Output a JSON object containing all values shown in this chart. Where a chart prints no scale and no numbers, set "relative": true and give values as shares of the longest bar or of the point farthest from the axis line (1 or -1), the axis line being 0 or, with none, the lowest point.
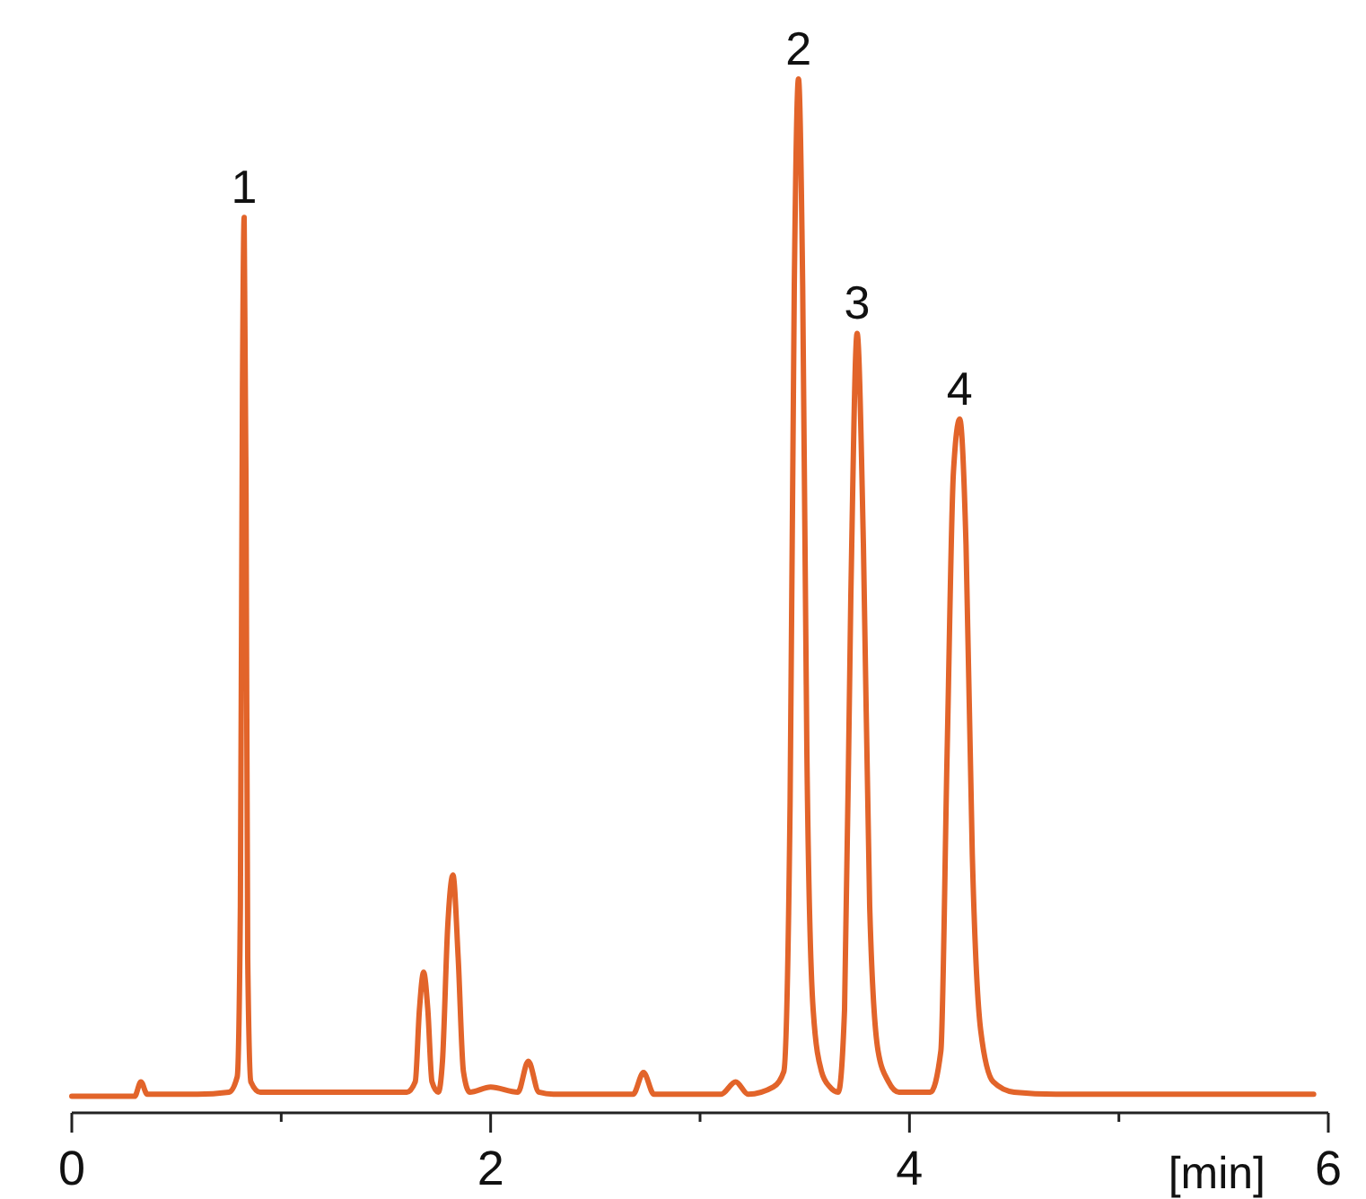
{
  "chart_data": {
    "type": "line",
    "relative": true,
    "xlabel": "[min]",
    "xlim": [
      0,
      6
    ],
    "xticks": [
      0,
      {
        "value": 1,
        "label": null
      },
      2,
      {
        "value": 3,
        "label": null
      },
      4,
      {
        "value": 5,
        "label": null
      },
      6
    ],
    "tick_labels": "x",
    "grid": false,
    "marker": "none",
    "line_style": "solid",
    "annotations": [
      {
        "text": "1",
        "x": 0.823,
        "y": 0.866
      },
      {
        "text": "2",
        "x": 3.47,
        "y": 1
      },
      {
        "text": "3",
        "x": 3.75,
        "y": 0.754
      },
      {
        "text": "4",
        "x": 4.24,
        "y": 0.671
      }
    ],
    "series": [
      {
        "color": "#e2642a",
        "x": [
          0,
          0.3,
          0.33,
          0.36,
          0.6,
          0.75,
          0.79,
          0.805,
          0.815,
          0.823,
          0.832,
          0.84,
          0.855,
          0.9,
          1.3,
          1.6,
          1.64,
          1.66,
          1.68,
          1.7,
          1.72,
          1.75,
          1.77,
          1.795,
          1.82,
          1.845,
          1.87,
          1.9,
          2.0,
          2.13,
          2.18,
          2.23,
          2.3,
          2.68,
          2.73,
          2.78,
          3.1,
          3.17,
          3.23,
          3.35,
          3.4,
          3.43,
          3.45,
          3.47,
          3.49,
          3.51,
          3.54,
          3.58,
          3.62,
          3.66,
          3.69,
          3.72,
          3.75,
          3.78,
          3.81,
          3.85,
          3.9,
          3.95,
          4.1,
          4.15,
          4.18,
          4.21,
          4.24,
          4.27,
          4.3,
          4.34,
          4.4,
          4.5,
          4.7,
          5.93
        ],
        "values": [
          0.016,
          0.016,
          0.03,
          0.018,
          0.018,
          0.02,
          0.035,
          0.2,
          0.7,
          0.866,
          0.6,
          0.15,
          0.03,
          0.02,
          0.02,
          0.02,
          0.03,
          0.1,
          0.136,
          0.1,
          0.03,
          0.02,
          0.05,
          0.18,
          0.23,
          0.15,
          0.04,
          0.02,
          0.025,
          0.02,
          0.05,
          0.02,
          0.018,
          0.018,
          0.039,
          0.018,
          0.018,
          0.03,
          0.018,
          0.025,
          0.04,
          0.3,
          0.8,
          1,
          0.8,
          0.35,
          0.1,
          0.04,
          0.025,
          0.02,
          0.1,
          0.5,
          0.754,
          0.55,
          0.2,
          0.06,
          0.03,
          0.02,
          0.02,
          0.06,
          0.35,
          0.62,
          0.671,
          0.55,
          0.25,
          0.08,
          0.03,
          0.02,
          0.018,
          0.018
        ]
      }
    ]
  }
}
